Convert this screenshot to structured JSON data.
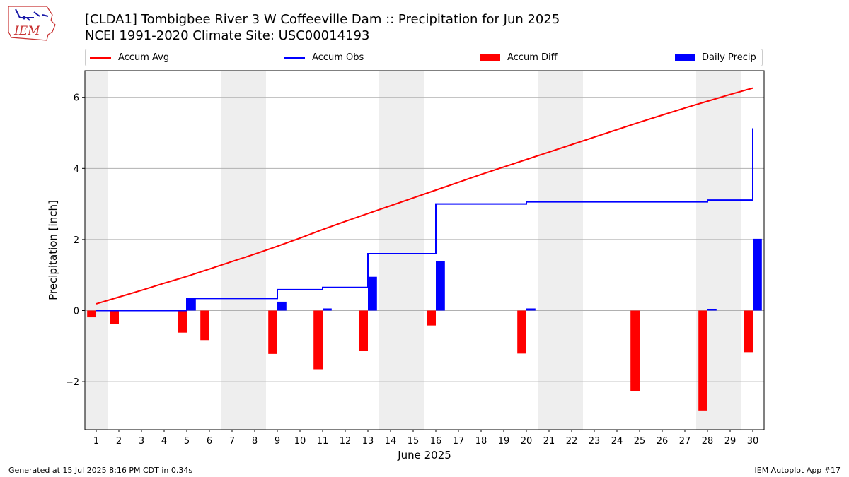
{
  "header": {
    "title": "[CLDA1] Tombigbee River 3 W Coffeeville Dam :: Precipitation for Jun 2025",
    "subtitle": "NCEI 1991-2020 Climate Site: USC00014193"
  },
  "logo": {
    "text": "IEM",
    "icon": "iem-iowa-logo-icon"
  },
  "footer": {
    "left": "Generated at 15 Jul 2025 8:16 PM CDT in 0.34s",
    "right": "IEM Autoplot App #17"
  },
  "colors": {
    "avg": "#ff0000",
    "obs": "#0000ff",
    "diff": "#ff0000",
    "daily": "#0000ff",
    "weekend": "#eeeeee",
    "grid": "#b0b0b0"
  },
  "chart_data": {
    "type": "bar",
    "xlabel": "June 2025",
    "ylabel": "Precipitation [inch]",
    "ylim": [
      -3.35,
      6.75
    ],
    "yticks": [
      -2,
      0,
      2,
      4,
      6
    ],
    "ytick_labels": [
      "−2",
      "0",
      "2",
      "4",
      "6"
    ],
    "grid": "horizontal",
    "legend_placement": "top",
    "days": [
      1,
      2,
      3,
      4,
      5,
      6,
      7,
      8,
      9,
      10,
      11,
      12,
      13,
      14,
      15,
      16,
      17,
      18,
      19,
      20,
      21,
      22,
      23,
      24,
      25,
      26,
      27,
      28,
      29,
      30
    ],
    "weekend_shaded_days": [
      1,
      7,
      8,
      14,
      15,
      21,
      22,
      28,
      29
    ],
    "series": [
      {
        "name": "Accum Avg",
        "kind": "line",
        "values": [
          0.19,
          0.38,
          0.57,
          0.77,
          0.96,
          1.17,
          1.38,
          1.59,
          1.81,
          2.04,
          2.28,
          2.51,
          2.73,
          2.95,
          3.17,
          3.39,
          3.61,
          3.83,
          4.04,
          4.25,
          4.46,
          4.67,
          4.88,
          5.09,
          5.3,
          5.5,
          5.7,
          5.89,
          6.08,
          6.26
        ]
      },
      {
        "name": "Accum Obs",
        "kind": "step",
        "values": [
          0.0,
          0.0,
          0.0,
          0.0,
          0.34,
          0.34,
          0.34,
          0.34,
          0.59,
          0.59,
          0.65,
          0.65,
          1.6,
          1.6,
          1.6,
          3.0,
          3.0,
          3.0,
          3.0,
          3.06,
          3.06,
          3.06,
          3.06,
          3.06,
          3.06,
          3.06,
          3.06,
          3.11,
          3.11,
          5.13
        ]
      },
      {
        "name": "Accum Diff",
        "kind": "bar",
        "values": [
          -0.19,
          -0.38,
          0,
          0,
          -0.62,
          -0.83,
          0,
          0,
          -1.22,
          0,
          -1.65,
          0,
          -1.13,
          0,
          0,
          -0.42,
          0,
          0,
          0,
          -1.21,
          0,
          0,
          0,
          0,
          -2.26,
          0,
          0,
          -2.81,
          0,
          -1.17
        ]
      },
      {
        "name": "Daily Precip",
        "kind": "bar",
        "values": [
          0,
          0,
          0,
          0,
          0.34,
          0,
          0,
          0,
          0.25,
          0,
          0.06,
          0,
          0.95,
          0,
          0,
          1.39,
          0,
          0,
          0,
          0.06,
          0,
          0,
          0,
          0,
          0,
          0,
          0,
          0.05,
          0,
          2.02
        ]
      }
    ]
  }
}
